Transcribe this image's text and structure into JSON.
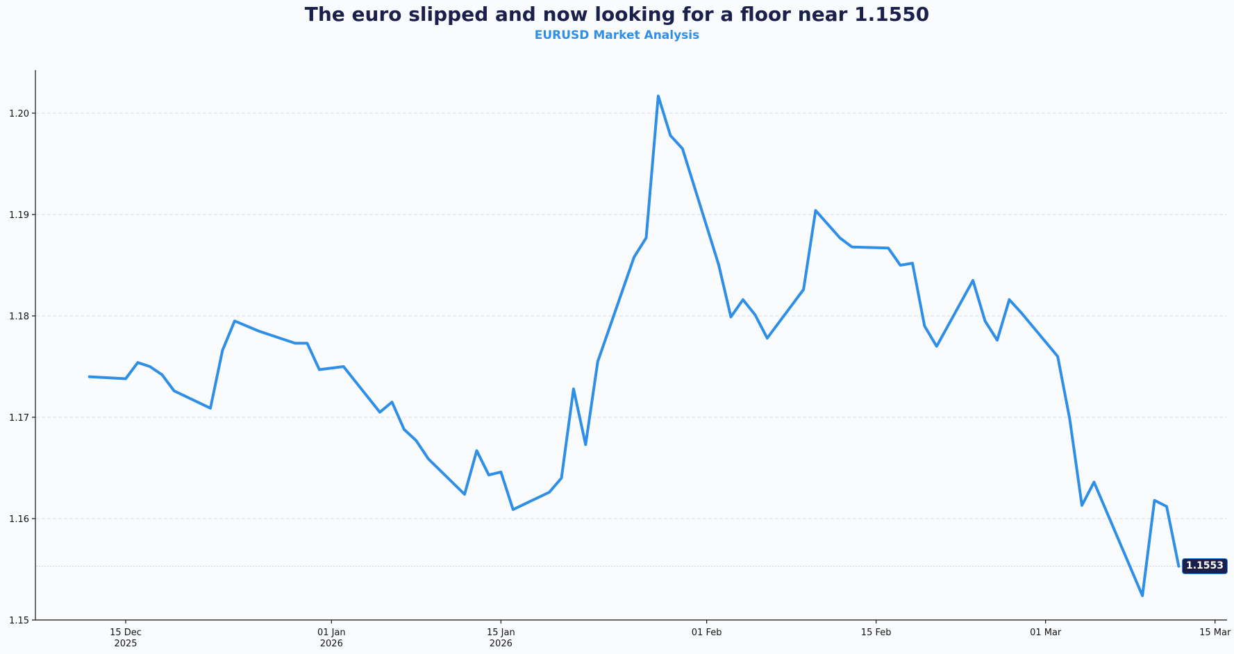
{
  "header": {
    "title": "The euro slipped and now looking for a floor near 1.1550",
    "subtitle": "EURUSD Market Analysis"
  },
  "colors": {
    "line": "#2f8fe6",
    "title": "#1b1f4b",
    "subtitle": "#2f8fe6",
    "tag_bg": "#1b1f4b",
    "grid": "#d9dde3",
    "background": "#f9fbfd"
  },
  "last_price_label": "1.1553",
  "chart_data": {
    "type": "line",
    "title": "The euro slipped and now looking for a floor near 1.1550",
    "subtitle": "EURUSD Market Analysis",
    "xlabel": "",
    "ylabel": "",
    "ylim": [
      1.15,
      1.2035
    ],
    "yticks": [
      1.15,
      1.16,
      1.17,
      1.18,
      1.19,
      1.2
    ],
    "ytick_labels": [
      "1.15",
      "1.16",
      "1.17",
      "1.18",
      "1.19",
      "1.20"
    ],
    "xticks": [
      {
        "date": "2025-12-15",
        "label": "15 Dec",
        "sublabel": "2025"
      },
      {
        "date": "2026-01-01",
        "label": "01 Jan",
        "sublabel": "2026"
      },
      {
        "date": "2026-01-15",
        "label": "15 Jan",
        "sublabel": "2026"
      },
      {
        "date": "2026-02-01",
        "label": "01 Feb",
        "sublabel": ""
      },
      {
        "date": "2026-02-15",
        "label": "15 Feb",
        "sublabel": ""
      },
      {
        "date": "2026-03-01",
        "label": "01 Mar",
        "sublabel": ""
      },
      {
        "date": "2026-03-15",
        "label": "15 Mar",
        "sublabel": ""
      }
    ],
    "grid": "horizontal dashed",
    "reference_line": {
      "value": 1.1553,
      "style": "dotted",
      "label": "1.1553"
    },
    "series": [
      {
        "name": "EURUSD",
        "x": [
          "2025-12-12",
          "2025-12-15",
          "2025-12-16",
          "2025-12-17",
          "2025-12-18",
          "2025-12-19",
          "2025-12-22",
          "2025-12-23",
          "2025-12-24",
          "2025-12-26",
          "2025-12-29",
          "2025-12-30",
          "2025-12-31",
          "2026-01-02",
          "2026-01-05",
          "2026-01-06",
          "2026-01-07",
          "2026-01-08",
          "2026-01-09",
          "2026-01-12",
          "2026-01-13",
          "2026-01-14",
          "2026-01-15",
          "2026-01-16",
          "2026-01-19",
          "2026-01-20",
          "2026-01-21",
          "2026-01-22",
          "2026-01-23",
          "2026-01-26",
          "2026-01-27",
          "2026-01-28",
          "2026-01-29",
          "2026-01-30",
          "2026-02-02",
          "2026-02-03",
          "2026-02-04",
          "2026-02-05",
          "2026-02-06",
          "2026-02-09",
          "2026-02-10",
          "2026-02-12",
          "2026-02-13",
          "2026-02-16",
          "2026-02-17",
          "2026-02-18",
          "2026-02-19",
          "2026-02-20",
          "2026-02-23",
          "2026-02-24",
          "2026-02-25",
          "2026-02-26",
          "2026-02-27",
          "2026-03-02",
          "2026-03-03",
          "2026-03-04",
          "2026-03-05",
          "2026-03-09",
          "2026-03-10",
          "2026-03-11",
          "2026-03-12"
        ],
        "day_offset": [
          -3,
          0,
          1,
          2,
          3,
          4,
          7,
          8,
          9,
          11,
          14,
          15,
          16,
          18,
          21,
          22,
          23,
          24,
          25,
          28,
          29,
          30,
          31,
          32,
          35,
          36,
          37,
          38,
          39,
          42,
          43,
          44,
          45,
          46,
          49,
          50,
          51,
          52,
          53,
          56,
          57,
          59,
          60,
          63,
          64,
          65,
          66,
          67,
          70,
          71,
          72,
          73,
          74,
          77,
          78,
          79,
          80,
          84,
          85,
          86,
          87
        ],
        "values": [
          1.174,
          1.1738,
          1.1754,
          1.175,
          1.1742,
          1.1726,
          1.1709,
          1.1766,
          1.1795,
          1.1785,
          1.1773,
          1.1773,
          1.1747,
          1.175,
          1.1705,
          1.1715,
          1.1688,
          1.1677,
          1.1659,
          1.1624,
          1.1667,
          1.1643,
          1.1646,
          1.1609,
          1.1626,
          1.164,
          1.1728,
          1.1673,
          1.1755,
          1.1858,
          1.1877,
          1.2017,
          1.1978,
          1.1965,
          1.185,
          1.1799,
          1.1816,
          1.1801,
          1.1778,
          1.1826,
          1.1904,
          1.1877,
          1.1868,
          1.1867,
          1.185,
          1.1852,
          1.179,
          1.177,
          1.1835,
          1.1795,
          1.1776,
          1.1816,
          1.1803,
          1.176,
          1.1698,
          1.1613,
          1.1636,
          1.1524,
          1.1618,
          1.1612,
          1.1553
        ]
      }
    ],
    "legend": "none"
  }
}
